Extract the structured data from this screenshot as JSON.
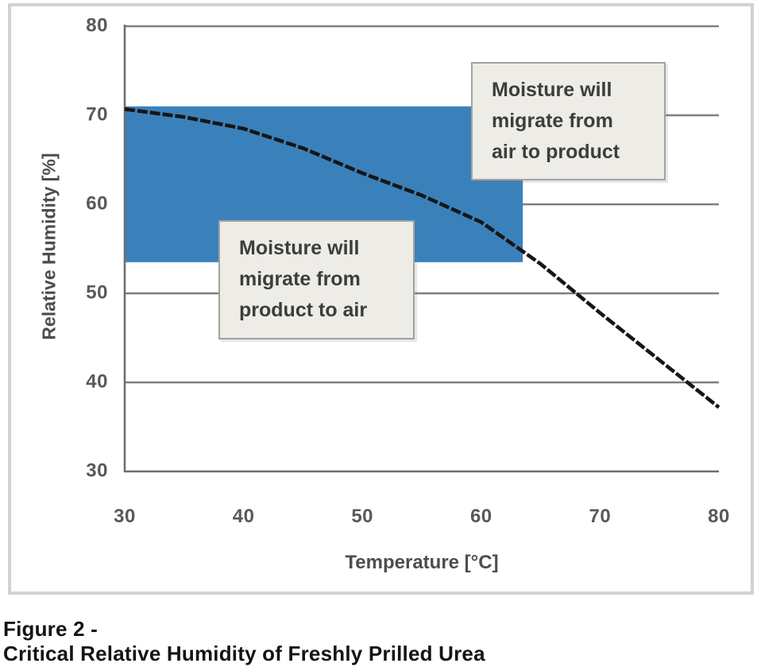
{
  "figure": {
    "caption_line1": "Figure 2 -",
    "caption_line2": "Critical Relative Humidity of Freshly Prilled Urea"
  },
  "chart_data": {
    "type": "line",
    "title": "",
    "xlabel": "Temperature [°C]",
    "ylabel": "Relative Humidity [%]",
    "xlim": [
      30,
      80
    ],
    "ylim": [
      30,
      80
    ],
    "x_ticks": [
      30,
      40,
      50,
      60,
      70,
      80
    ],
    "y_ticks": [
      30,
      40,
      50,
      60,
      70,
      80
    ],
    "grid": "horizontal gridlines at every 10 % RH; plot open on right side",
    "legend": "none",
    "series": [
      {
        "name": "critical-relative-humidity-curve",
        "x": [
          30,
          35,
          40,
          45,
          50,
          55,
          60,
          65,
          70,
          75,
          80
        ],
        "y": [
          70.7,
          69.8,
          68.5,
          66.3,
          63.5,
          61.0,
          58.0,
          53.3,
          47.8,
          42.5,
          37.2
        ],
        "color": "#161616"
      }
    ],
    "shaded_region": {
      "description": "blue rectangle below the CRH curve",
      "x_range": [
        30,
        63.5
      ],
      "y_range": [
        53.5,
        71
      ],
      "color": "#3a81bc"
    },
    "annotations": [
      {
        "id": "air-to-product",
        "text": "Moisture will migrate from air to product",
        "lines": [
          "Moisture will",
          "migrate from",
          "air to product"
        ],
        "position": "above curve, upper right"
      },
      {
        "id": "product-to-air",
        "text": "Moisture will migrate from product to air",
        "lines": [
          "Moisture will",
          "migrate from",
          "product to air"
        ],
        "position": "below curve, inside shaded region"
      }
    ],
    "colors": {
      "curve": "#161616",
      "shaded_region": "#3a81bc",
      "gridline": "#7f7f7f",
      "axis": "#6e6e6e",
      "tick_label": "#595959",
      "axis_title": "#4d4d4d",
      "annotation_fill": "#edece7",
      "annotation_border": "#a3a39e",
      "annotation_text": "#3d3d3d",
      "frame_border": "#d2d2d2"
    }
  }
}
